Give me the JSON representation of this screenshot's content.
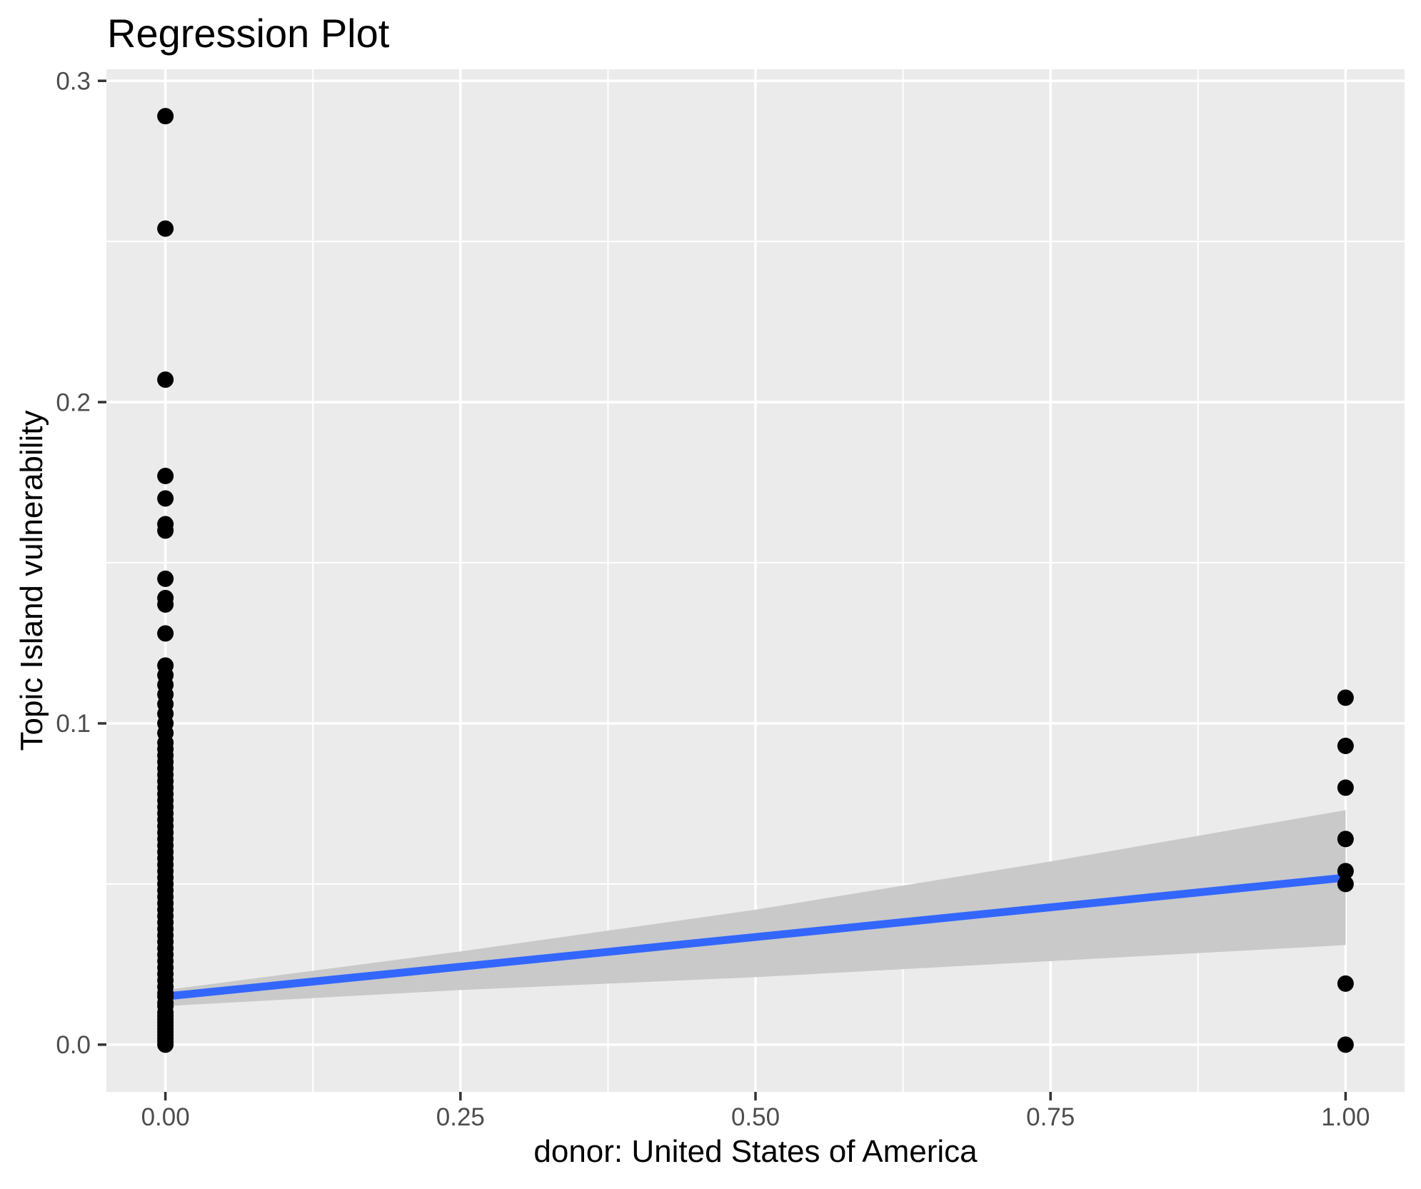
{
  "colors": {
    "outer_background": "#FFFFFF",
    "panel_background": "#EBEBEB",
    "gridline": "#FFFFFF",
    "point": "#000000",
    "regression_line": "#3366FF",
    "confidence_ribbon": "#C9C9C9",
    "axis_tick_text": "#4D4D4D",
    "tick_mark": "#333333",
    "title_text": "#000000"
  },
  "chart_data": {
    "type": "scatter",
    "title": "Regression Plot",
    "xlabel": "donor: United States of America",
    "ylabel": "Topic Island vulnerability",
    "xlim": [
      -0.05,
      1.05
    ],
    "ylim": [
      -0.0147,
      0.3036
    ],
    "grid": true,
    "legend": "none",
    "x_ticks": {
      "values": [
        0,
        0.25,
        0.5,
        0.75,
        1.0
      ],
      "labels": [
        "0.00",
        "0.25",
        "0.50",
        "0.75",
        "1.00"
      ],
      "minor": [
        0.125,
        0.375,
        0.625,
        0.875
      ]
    },
    "y_ticks": {
      "values": [
        0,
        0.1,
        0.2,
        0.3
      ],
      "labels": [
        "0.0",
        "0.1",
        "0.2",
        "0.3"
      ],
      "minor": [
        0.05,
        0.15,
        0.25
      ]
    },
    "series": [
      {
        "name": "donor = 0",
        "x": 0,
        "values": [
          0.289,
          0.254,
          0.207,
          0.177,
          0.17,
          0.162,
          0.16,
          0.145,
          0.139,
          0.137,
          0.128,
          0.118,
          0.115,
          0.112,
          0.109,
          0.106,
          0.103,
          0.1,
          0.097,
          0.094,
          0.092,
          0.09,
          0.088,
          0.086,
          0.084,
          0.082,
          0.08,
          0.078,
          0.076,
          0.074,
          0.072,
          0.07,
          0.068,
          0.066,
          0.064,
          0.062,
          0.06,
          0.058,
          0.056,
          0.054,
          0.052,
          0.05,
          0.048,
          0.046,
          0.044,
          0.042,
          0.04,
          0.038,
          0.036,
          0.034,
          0.032,
          0.03,
          0.028,
          0.026,
          0.024,
          0.022,
          0.02,
          0.018,
          0.016,
          0.015,
          0.013,
          0.012,
          0.01,
          0.009,
          0.008,
          0.007,
          0.006,
          0.005,
          0.004,
          0.003,
          0.002,
          0.001,
          0.0
        ]
      },
      {
        "name": "donor = 1",
        "x": 1,
        "values": [
          0.108,
          0.093,
          0.08,
          0.064,
          0.054,
          0.05,
          0.019,
          0.0
        ]
      }
    ],
    "regression_line": {
      "x": [
        0,
        1
      ],
      "y": [
        0.015,
        0.052
      ]
    },
    "confidence_ribbon": {
      "x": [
        0,
        0.25,
        0.5,
        0.75,
        1.0
      ],
      "upper": [
        0.017,
        0.029,
        0.042,
        0.057,
        0.073
      ],
      "lower": [
        0.012,
        0.017,
        0.021,
        0.026,
        0.031
      ]
    }
  }
}
